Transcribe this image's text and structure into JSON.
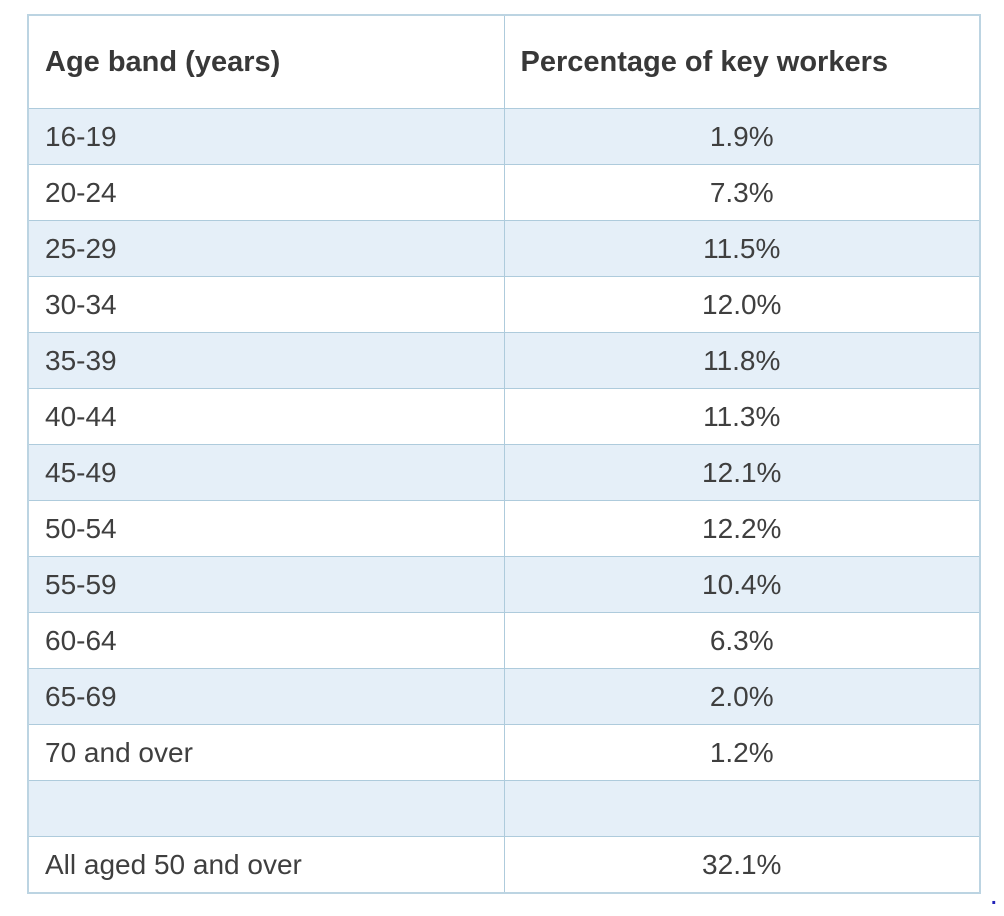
{
  "chart_data": {
    "type": "table",
    "columns": [
      "Age band (years)",
      "Percentage of key workers"
    ],
    "rows": [
      [
        "16-19",
        "1.9%"
      ],
      [
        "20-24",
        "7.3%"
      ],
      [
        "25-29",
        "11.5%"
      ],
      [
        "30-34",
        "12.0%"
      ],
      [
        "35-39",
        "11.8%"
      ],
      [
        "40-44",
        "11.3%"
      ],
      [
        "45-49",
        "12.1%"
      ],
      [
        "50-54",
        "12.2%"
      ],
      [
        "55-59",
        "10.4%"
      ],
      [
        "60-64",
        "6.3%"
      ],
      [
        "65-69",
        "2.0%"
      ],
      [
        "70 and over",
        "1.2%"
      ],
      [
        "",
        ""
      ],
      [
        "All aged 50 and over",
        "32.1%"
      ]
    ],
    "values_percent": [
      1.9,
      7.3,
      11.5,
      12.0,
      11.8,
      11.3,
      12.1,
      12.2,
      10.4,
      6.3,
      2.0,
      1.2
    ],
    "summary_row": {
      "label": "All aged 50 and over",
      "value_percent": 32.1
    },
    "layout_hints": {
      "alternating_rows": true,
      "empty_spacer_row_index": 12,
      "column_alignment": [
        "left",
        "center"
      ]
    }
  },
  "colors": {
    "row_alt_background": "#e5eff8",
    "row_background": "#ffffff",
    "border": "#aecbdc",
    "outer_border": "#bcd4e2",
    "text": "#3f3f3f",
    "end_dot": "#2222b8"
  },
  "footer": {
    "dot": "."
  }
}
